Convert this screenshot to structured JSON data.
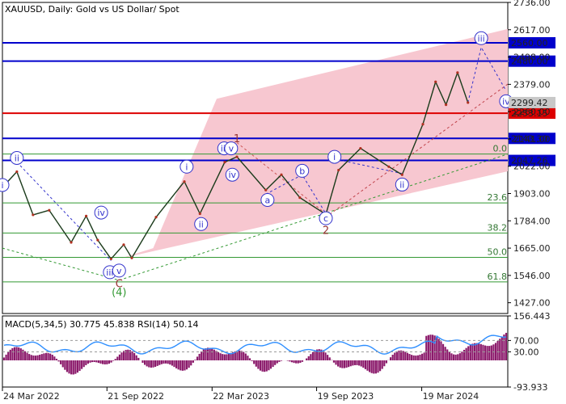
{
  "chart_data": {
    "type": "line",
    "title": "XAUUSD, Daily:  Gold vs US Dollar/ Spot",
    "symbol": "XAUUSD",
    "timeframe": "Daily",
    "description": "Gold vs US Dollar/ Spot",
    "y_axis": {
      "ylim": [
        1380,
        2736
      ],
      "ticks": [
        "2736.00",
        "2617.00",
        "2498.00",
        "2379.00",
        "2260.00",
        "2141.00",
        "2022.00",
        "1903.00",
        "1784.00",
        "1665.00",
        "1546.00",
        "1427.00"
      ]
    },
    "x_axis": {
      "xlim": [
        "2024-03-24",
        "2024-08-15"
      ],
      "ticks": [
        "24 Mar 2022",
        "21 Sep 2022",
        "22 Mar 2023",
        "19 Sep 2023",
        "19 Mar 2024"
      ]
    },
    "price_series": [
      {
        "date": "2022-03-24",
        "close": 1930
      },
      {
        "date": "2022-04-18",
        "close": 1998
      },
      {
        "date": "2022-05-16",
        "close": 1810
      },
      {
        "date": "2022-06-13",
        "close": 1830
      },
      {
        "date": "2022-07-21",
        "close": 1690
      },
      {
        "date": "2022-08-16",
        "close": 1805
      },
      {
        "date": "2022-09-05",
        "close": 1700
      },
      {
        "date": "2022-09-28",
        "close": 1618
      },
      {
        "date": "2022-10-20",
        "close": 1680
      },
      {
        "date": "2022-11-03",
        "close": 1622
      },
      {
        "date": "2022-12-15",
        "close": 1800
      },
      {
        "date": "2023-02-02",
        "close": 1955
      },
      {
        "date": "2023-03-01",
        "close": 1815
      },
      {
        "date": "2023-04-13",
        "close": 2040
      },
      {
        "date": "2023-05-04",
        "close": 2063
      },
      {
        "date": "2023-06-23",
        "close": 1918
      },
      {
        "date": "2023-07-20",
        "close": 1985
      },
      {
        "date": "2023-08-21",
        "close": 1885
      },
      {
        "date": "2023-10-05",
        "close": 1812
      },
      {
        "date": "2023-10-27",
        "close": 2005
      },
      {
        "date": "2023-12-04",
        "close": 2100
      },
      {
        "date": "2024-01-22",
        "close": 2020
      },
      {
        "date": "2024-02-14",
        "close": 1985
      },
      {
        "date": "2024-03-21",
        "close": 2205
      },
      {
        "date": "2024-04-12",
        "close": 2390
      },
      {
        "date": "2024-04-30",
        "close": 2290
      },
      {
        "date": "2024-05-20",
        "close": 2430
      },
      {
        "date": "2024-06-07",
        "close": 2299.42
      }
    ],
    "current_price": "2299.42",
    "horizontal_levels": [
      {
        "value": 2560.0,
        "label": "2560.00",
        "color": "#0000cc"
      },
      {
        "value": 2480.0,
        "label": "2480.00",
        "color": "#0000cc"
      },
      {
        "value": 2253.15,
        "label": "2253.15",
        "color": "#dd0000"
      },
      {
        "value": 2143.3,
        "label": "2143.30",
        "color": "#0000cc"
      },
      {
        "value": 2047.26,
        "label": "2047.26",
        "color": "#0000cc"
      }
    ],
    "fibonacci_levels": [
      {
        "ratio": "0.0",
        "value": 2075
      },
      {
        "ratio": "23.6",
        "value": 1862
      },
      {
        "ratio": "38.2",
        "value": 1731
      },
      {
        "ratio": "50.0",
        "value": 1625
      },
      {
        "ratio": "61.8",
        "value": 1518
      }
    ],
    "wave_labels": [
      {
        "text": "i",
        "date": "2022-03-24",
        "price": 1940,
        "style": "circled"
      },
      {
        "text": "ii",
        "date": "2022-04-18",
        "price": 2058,
        "style": "circled"
      },
      {
        "text": "iii",
        "date": "2022-09-26",
        "price": 1560,
        "style": "circled"
      },
      {
        "text": "iv",
        "date": "2022-09-11",
        "price": 1820,
        "style": "circled"
      },
      {
        "text": "v",
        "date": "2022-10-12",
        "price": 1567,
        "style": "circled"
      },
      {
        "text": "C",
        "date": "2022-10-12",
        "price": 1512,
        "style": "plain"
      },
      {
        "text": "(4)",
        "date": "2022-10-12",
        "price": 1475,
        "style": "paren"
      },
      {
        "text": "i",
        "date": "2023-02-06",
        "price": 2020,
        "style": "circled"
      },
      {
        "text": "ii",
        "date": "2023-03-03",
        "price": 1770,
        "style": "circled"
      },
      {
        "text": "iii",
        "date": "2023-04-12",
        "price": 2100,
        "style": "circled"
      },
      {
        "text": "v",
        "date": "2023-04-24",
        "price": 2100,
        "style": "circled"
      },
      {
        "text": "iv",
        "date": "2023-04-26",
        "price": 1985,
        "style": "circled"
      },
      {
        "text": "1",
        "date": "2023-05-04",
        "price": 2145,
        "style": "plain"
      },
      {
        "text": "a",
        "date": "2023-06-26",
        "price": 1875,
        "style": "circled"
      },
      {
        "text": "b",
        "date": "2023-08-25",
        "price": 2002,
        "style": "circled"
      },
      {
        "text": "c",
        "date": "2023-10-05",
        "price": 1795,
        "style": "circled"
      },
      {
        "text": "2",
        "date": "2023-10-05",
        "price": 1745,
        "style": "plain"
      },
      {
        "text": "i",
        "date": "2023-10-20",
        "price": 2063,
        "style": "circled"
      },
      {
        "text": "ii",
        "date": "2024-02-14",
        "price": 1942,
        "style": "circled"
      },
      {
        "text": "iii",
        "date": "2024-06-30",
        "price": 2580,
        "style": "circled"
      },
      {
        "text": "iv",
        "date": "2024-08-12",
        "price": 2305,
        "style": "circled"
      }
    ],
    "indicator_panel": {
      "title": "MACD(5,34,5) 30.775 45.838 RSI(14) 50.14",
      "ticks": [
        "156.443",
        "70.00",
        "30.00",
        "-93.933"
      ]
    }
  }
}
